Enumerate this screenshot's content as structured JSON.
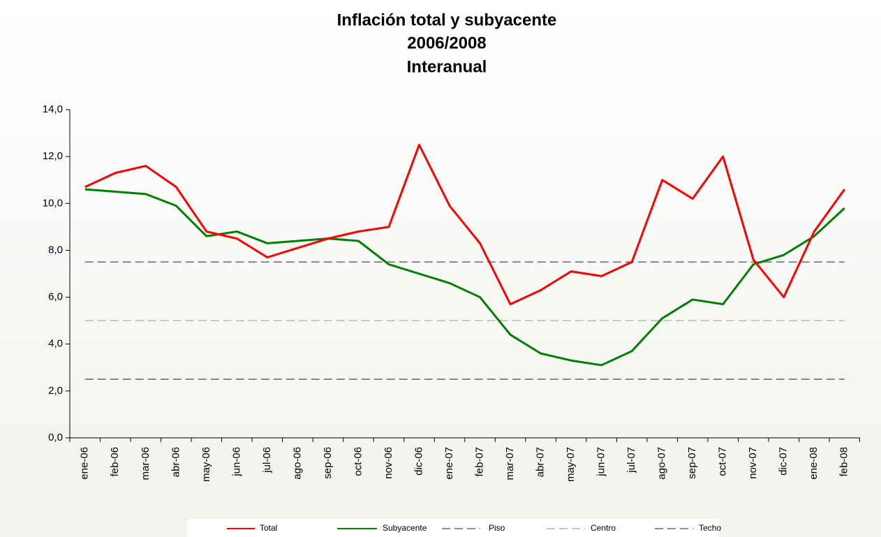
{
  "chart_data": {
    "type": "line",
    "title": [
      "Inflación total y subyacente",
      "2006/2008",
      "Interanual"
    ],
    "categories": [
      "ene-06",
      "feb-06",
      "mar-06",
      "abr-06",
      "may-06",
      "jun-06",
      "jul-06",
      "ago-06",
      "sep-06",
      "oct-06",
      "nov-06",
      "dic-06",
      "ene-07",
      "feb-07",
      "mar-07",
      "abr-07",
      "may-07",
      "jun-07",
      "jul-07",
      "ago-07",
      "sep-07",
      "oct-07",
      "nov-07",
      "dic-07",
      "ene-08",
      "feb-08"
    ],
    "series": [
      {
        "name": "Total",
        "color": "#ff0000",
        "dash": "solid",
        "values": [
          10.7,
          11.3,
          11.6,
          10.7,
          8.8,
          8.5,
          7.7,
          8.1,
          8.5,
          8.8,
          9.0,
          12.5,
          9.9,
          8.3,
          5.7,
          6.3,
          7.1,
          6.9,
          7.5,
          11.0,
          10.2,
          12.0,
          7.6,
          6.0,
          8.8,
          10.6
        ]
      },
      {
        "name": "Subyacente",
        "color": "#008000",
        "dash": "solid",
        "values": [
          10.6,
          10.5,
          10.4,
          9.9,
          8.6,
          8.8,
          8.3,
          8.4,
          8.5,
          8.4,
          7.4,
          7.0,
          6.6,
          6.0,
          4.4,
          3.6,
          3.3,
          3.1,
          3.7,
          5.1,
          5.9,
          5.7,
          7.4,
          7.8,
          8.6,
          9.8
        ]
      },
      {
        "name": "Piso",
        "color": "#808080",
        "dash": "dashed",
        "values": [
          2.5,
          2.5,
          2.5,
          2.5,
          2.5,
          2.5,
          2.5,
          2.5,
          2.5,
          2.5,
          2.5,
          2.5,
          2.5,
          2.5,
          2.5,
          2.5,
          2.5,
          2.5,
          2.5,
          2.5,
          2.5,
          2.5,
          2.5,
          2.5,
          2.5,
          2.5
        ]
      },
      {
        "name": "Centro",
        "color": "#c0c0c0",
        "dash": "dashed",
        "values": [
          5,
          5,
          5,
          5,
          5,
          5,
          5,
          5,
          5,
          5,
          5,
          5,
          5,
          5,
          5,
          5,
          5,
          5,
          5,
          5,
          5,
          5,
          5,
          5,
          5,
          5
        ]
      },
      {
        "name": "Techo",
        "color": "#808080",
        "dash": "dashed",
        "values": [
          7.5,
          7.5,
          7.5,
          7.5,
          7.5,
          7.5,
          7.5,
          7.5,
          7.5,
          7.5,
          7.5,
          7.5,
          7.5,
          7.5,
          7.5,
          7.5,
          7.5,
          7.5,
          7.5,
          7.5,
          7.5,
          7.5,
          7.5,
          7.5,
          7.5,
          7.5
        ]
      }
    ],
    "ylim": [
      0,
      14
    ],
    "yticks": [
      {
        "value": 0,
        "label": "0,0"
      },
      {
        "value": 2,
        "label": "2,0"
      },
      {
        "value": 4,
        "label": "4,0"
      },
      {
        "value": 6,
        "label": "6,0"
      },
      {
        "value": 8,
        "label": "8,0"
      },
      {
        "value": 10,
        "label": "10,0"
      },
      {
        "value": 12,
        "label": "12,0"
      },
      {
        "value": 14,
        "label": "14,0"
      }
    ],
    "legend": "bottom"
  }
}
